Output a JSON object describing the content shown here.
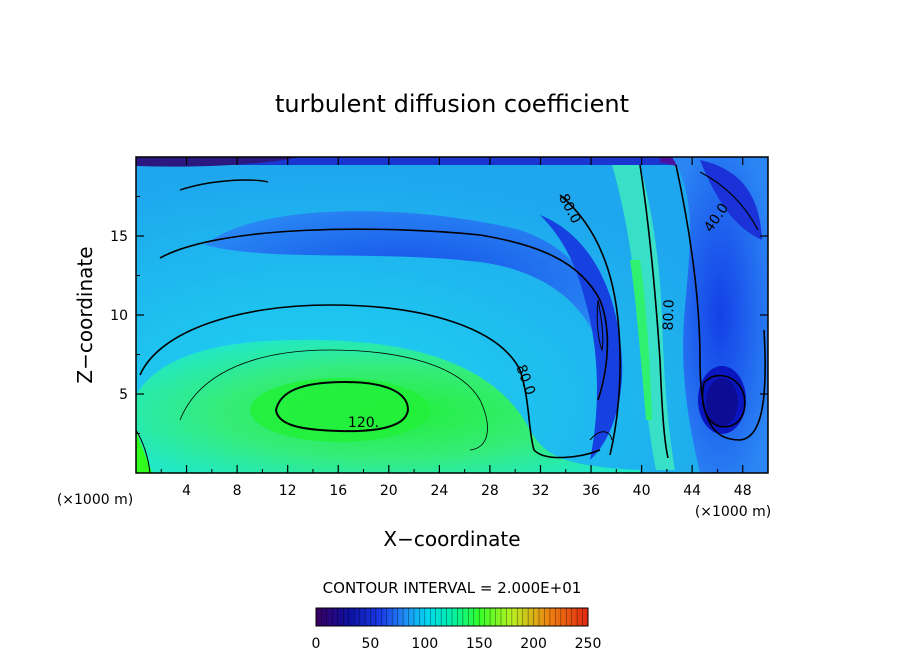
{
  "chart_data": {
    "type": "heatmap",
    "title": "turbulent diffusion coefficient",
    "xlabel": "X−coordinate",
    "ylabel": "Z−coordinate",
    "x_unit_left": "(×1000 m)",
    "x_unit_right": "(×1000 m)",
    "xlim": [
      0,
      50
    ],
    "ylim": [
      0,
      20
    ],
    "x_ticks": [
      4,
      8,
      12,
      16,
      20,
      24,
      28,
      32,
      36,
      40,
      44,
      48
    ],
    "y_ticks": [
      5,
      10,
      15
    ],
    "contour_interval_text": "CONTOUR INTERVAL = 2.000E+01",
    "contour_labels": [
      {
        "text": "120.",
        "x": 18.0,
        "y": 2.9
      },
      {
        "text": "80.0",
        "x": 30.5,
        "y": 5.8
      },
      {
        "text": "80.0",
        "x": 34.0,
        "y": 16.6
      },
      {
        "text": "80.0",
        "x": 42.5,
        "y": 10.0
      },
      {
        "text": "40.0",
        "x": 46.2,
        "y": 16.0
      }
    ],
    "colorbar": {
      "min": 0,
      "max": 250,
      "ticks": [
        "0",
        "50",
        "100",
        "150",
        "200",
        "250"
      ]
    },
    "colorscale": [
      "#3a0062",
      "#0d0fa0",
      "#1a3ce8",
      "#1f8ff5",
      "#00d8f0",
      "#00f0a8",
      "#33ff2a",
      "#b8f020",
      "#f08010",
      "#e02810"
    ]
  }
}
